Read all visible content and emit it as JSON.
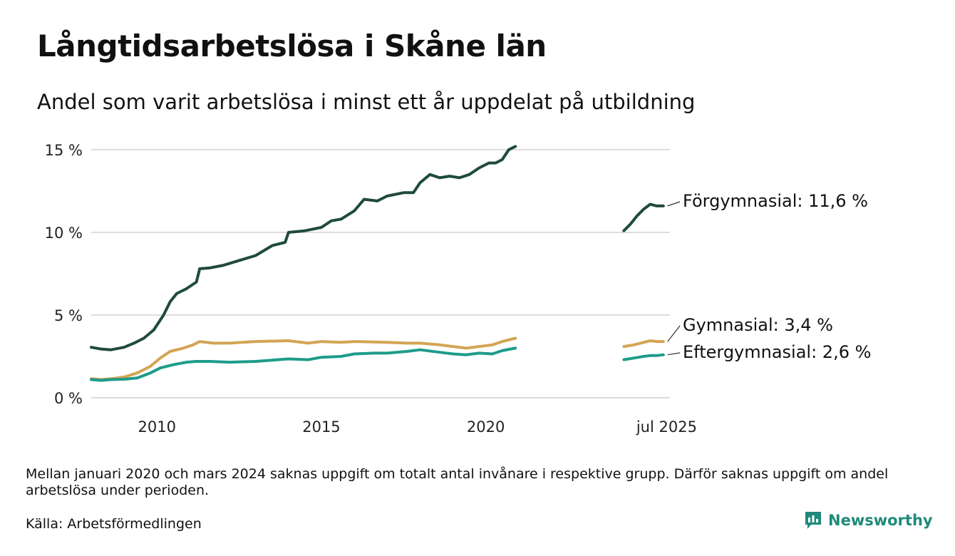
{
  "title": "Långtidsarbetslösa i Skåne län",
  "subtitle": "Andel som varit arbetslösa i minst ett år uppdelat på utbildning",
  "footnote": "Mellan januari 2020 och mars 2024 saknas uppgift om totalt antal invånare i respektive grupp. Därför saknas uppgift om andel arbetslösa under perioden.",
  "source": "Källa: Arbetsförmedlingen",
  "brand": "Newsworthy",
  "colors": {
    "forgymnasial": "#1f4a40",
    "gymnasial": "#d4a454",
    "eftergymnasial": "#1e9c8a",
    "grid": "#dddddd",
    "brand": "#1f8a7a"
  },
  "chart_data": {
    "type": "line",
    "ylim": [
      0,
      15
    ],
    "y_ticks": [
      {
        "value": 0,
        "label": "0 %"
      },
      {
        "value": 5,
        "label": "5 %"
      },
      {
        "value": 10,
        "label": "10 %"
      },
      {
        "value": 15,
        "label": "15 %"
      }
    ],
    "x_ticks": [
      {
        "value": 2010.0,
        "label": "2010"
      },
      {
        "value": 2015.0,
        "label": "2015"
      },
      {
        "value": 2020.0,
        "label": "2020"
      },
      {
        "value": 2025.5,
        "label": "jul 2025"
      }
    ],
    "xlim": [
      2008.0,
      2025.6
    ],
    "grid": true,
    "series": [
      {
        "name": "Förgymnasial",
        "label": "Förgymnasial: 11,6 %",
        "color": "#1f4a40",
        "segments": [
          [
            [
              2008.0,
              3.05
            ],
            [
              2008.3,
              2.95
            ],
            [
              2008.6,
              2.9
            ],
            [
              2009.0,
              3.05
            ],
            [
              2009.3,
              3.3
            ],
            [
              2009.6,
              3.6
            ],
            [
              2009.9,
              4.1
            ],
            [
              2010.2,
              5.0
            ],
            [
              2010.4,
              5.8
            ],
            [
              2010.6,
              6.3
            ],
            [
              2010.9,
              6.6
            ],
            [
              2011.2,
              7.0
            ],
            [
              2011.3,
              7.8
            ],
            [
              2011.6,
              7.85
            ],
            [
              2012.0,
              8.0
            ],
            [
              2012.5,
              8.3
            ],
            [
              2013.0,
              8.6
            ],
            [
              2013.5,
              9.2
            ],
            [
              2013.9,
              9.4
            ],
            [
              2014.0,
              10.0
            ],
            [
              2014.5,
              10.1
            ],
            [
              2015.0,
              10.3
            ],
            [
              2015.3,
              10.7
            ],
            [
              2015.6,
              10.8
            ],
            [
              2016.0,
              11.3
            ],
            [
              2016.3,
              12.0
            ],
            [
              2016.7,
              11.9
            ],
            [
              2017.0,
              12.2
            ],
            [
              2017.5,
              12.4
            ],
            [
              2017.8,
              12.4
            ],
            [
              2018.0,
              13.0
            ],
            [
              2018.3,
              13.5
            ],
            [
              2018.6,
              13.3
            ],
            [
              2018.9,
              13.4
            ],
            [
              2019.2,
              13.3
            ],
            [
              2019.5,
              13.5
            ],
            [
              2019.8,
              13.9
            ],
            [
              2020.1,
              14.2
            ],
            [
              2020.3,
              14.2
            ],
            [
              2020.5,
              14.4
            ],
            [
              2020.7,
              15.0
            ],
            [
              2020.9,
              15.2
            ]
          ],
          [
            [
              2024.2,
              10.1
            ],
            [
              2024.4,
              10.5
            ],
            [
              2024.6,
              11.0
            ],
            [
              2024.8,
              11.4
            ],
            [
              2025.0,
              11.7
            ],
            [
              2025.2,
              11.6
            ],
            [
              2025.4,
              11.6
            ]
          ]
        ]
      },
      {
        "name": "Gymnasial",
        "label": "Gymnasial:  3,4 %",
        "color": "#d4a454",
        "segments": [
          [
            [
              2008.0,
              1.15
            ],
            [
              2008.3,
              1.1
            ],
            [
              2008.6,
              1.15
            ],
            [
              2009.0,
              1.25
            ],
            [
              2009.4,
              1.5
            ],
            [
              2009.8,
              1.9
            ],
            [
              2010.1,
              2.4
            ],
            [
              2010.4,
              2.8
            ],
            [
              2010.8,
              3.0
            ],
            [
              2011.1,
              3.2
            ],
            [
              2011.3,
              3.4
            ],
            [
              2011.7,
              3.3
            ],
            [
              2012.2,
              3.3
            ],
            [
              2013.0,
              3.4
            ],
            [
              2014.0,
              3.45
            ],
            [
              2014.6,
              3.3
            ],
            [
              2015.0,
              3.4
            ],
            [
              2015.6,
              3.35
            ],
            [
              2016.0,
              3.4
            ],
            [
              2017.0,
              3.35
            ],
            [
              2017.6,
              3.3
            ],
            [
              2018.0,
              3.3
            ],
            [
              2018.6,
              3.2
            ],
            [
              2019.0,
              3.1
            ],
            [
              2019.4,
              3.0
            ],
            [
              2019.8,
              3.1
            ],
            [
              2020.2,
              3.2
            ],
            [
              2020.5,
              3.4
            ],
            [
              2020.9,
              3.6
            ]
          ],
          [
            [
              2024.2,
              3.1
            ],
            [
              2024.5,
              3.2
            ],
            [
              2024.8,
              3.35
            ],
            [
              2025.0,
              3.45
            ],
            [
              2025.2,
              3.4
            ],
            [
              2025.4,
              3.4
            ]
          ]
        ]
      },
      {
        "name": "Eftergymnasial",
        "label": "Eftergymnasial:  2,6 %",
        "color": "#1e9c8a",
        "segments": [
          [
            [
              2008.0,
              1.1
            ],
            [
              2008.3,
              1.05
            ],
            [
              2008.6,
              1.1
            ],
            [
              2009.0,
              1.12
            ],
            [
              2009.4,
              1.2
            ],
            [
              2009.8,
              1.5
            ],
            [
              2010.1,
              1.8
            ],
            [
              2010.5,
              2.0
            ],
            [
              2010.9,
              2.15
            ],
            [
              2011.2,
              2.2
            ],
            [
              2011.6,
              2.2
            ],
            [
              2012.2,
              2.15
            ],
            [
              2013.0,
              2.2
            ],
            [
              2014.0,
              2.35
            ],
            [
              2014.6,
              2.3
            ],
            [
              2015.0,
              2.45
            ],
            [
              2015.6,
              2.5
            ],
            [
              2016.0,
              2.65
            ],
            [
              2016.6,
              2.7
            ],
            [
              2017.0,
              2.7
            ],
            [
              2017.6,
              2.8
            ],
            [
              2018.0,
              2.9
            ],
            [
              2018.6,
              2.75
            ],
            [
              2019.0,
              2.65
            ],
            [
              2019.4,
              2.6
            ],
            [
              2019.8,
              2.7
            ],
            [
              2020.2,
              2.65
            ],
            [
              2020.5,
              2.85
            ],
            [
              2020.9,
              3.0
            ]
          ],
          [
            [
              2024.2,
              2.3
            ],
            [
              2024.5,
              2.4
            ],
            [
              2024.8,
              2.5
            ],
            [
              2025.0,
              2.55
            ],
            [
              2025.2,
              2.55
            ],
            [
              2025.4,
              2.6
            ]
          ]
        ]
      }
    ]
  }
}
